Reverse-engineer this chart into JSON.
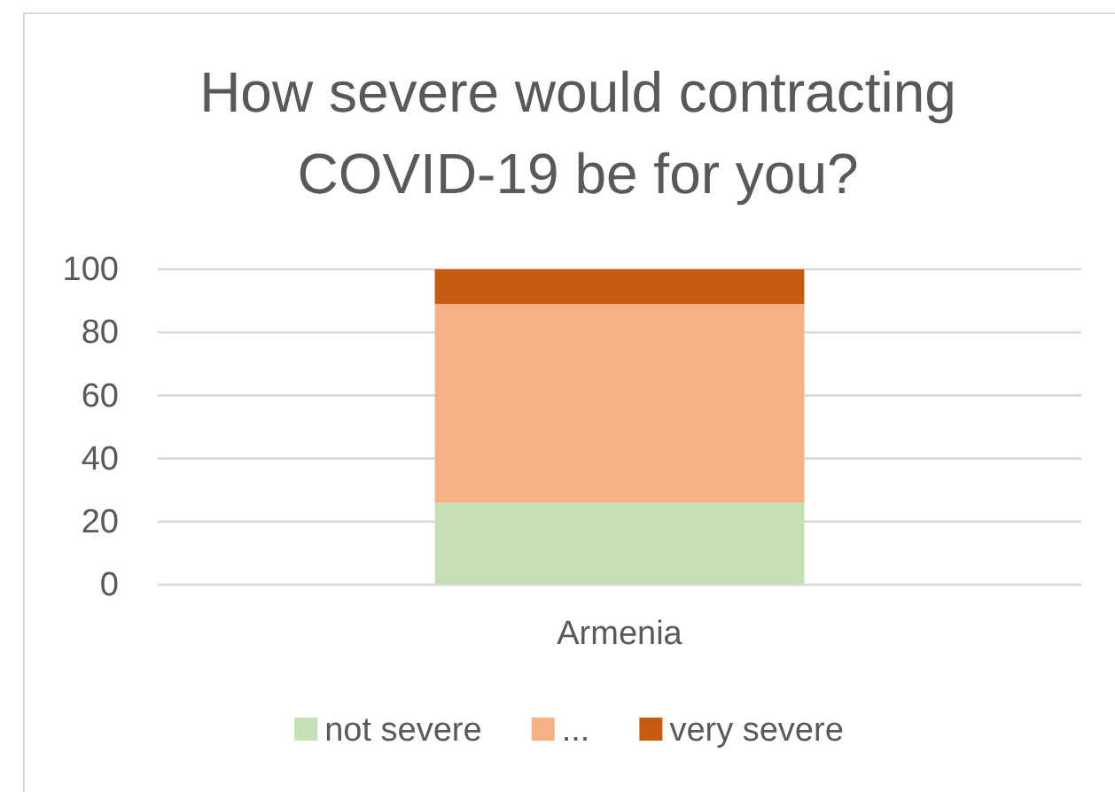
{
  "chart_data": {
    "type": "bar",
    "title": "How severe would contracting COVID-19 be for you?",
    "categories": [
      "Armenia"
    ],
    "series": [
      {
        "name": "not severe",
        "color": "#c5e0b4",
        "values": [
          26
        ]
      },
      {
        "name": "...",
        "color": "#f4b183",
        "values": [
          63
        ]
      },
      {
        "name": "very severe",
        "color": "#c55a11",
        "values": [
          11
        ]
      }
    ],
    "stacked": true,
    "ylim": [
      0,
      100
    ],
    "yticks": [
      0,
      20,
      40,
      60,
      80,
      100
    ],
    "grid": "y",
    "legend": "bottom"
  }
}
